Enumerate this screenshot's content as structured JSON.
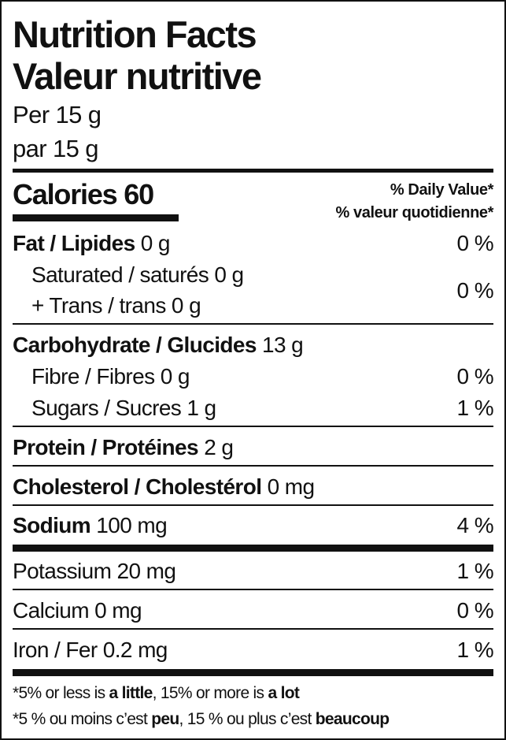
{
  "title_en": "Nutrition Facts",
  "title_fr": "Valeur nutritive",
  "serving_en": "Per 15 g",
  "serving_fr": "par 15 g",
  "calories_label": "Calories",
  "calories_value": "60",
  "dv_en": "% Daily Value*",
  "dv_fr": "% valeur quotidienne*",
  "rows": {
    "fat": {
      "label": "Fat / Lipides",
      "amount": "0 g",
      "dv": "0 %"
    },
    "saturated": {
      "label": "Saturated / saturés 0 g"
    },
    "trans": {
      "label": "+ Trans / trans 0 g",
      "dv": "0 %"
    },
    "carb": {
      "label": "Carbohydrate / Glucides",
      "amount": "13 g"
    },
    "fibre": {
      "label": "Fibre / Fibres 0 g",
      "dv": "0 %"
    },
    "sugars": {
      "label": "Sugars / Sucres 1 g",
      "dv": "1 %"
    },
    "protein": {
      "label": "Protein / Protéines",
      "amount": "2 g"
    },
    "cholesterol": {
      "label": "Cholesterol / Cholestérol",
      "amount": "0 mg"
    },
    "sodium": {
      "label": "Sodium",
      "amount": "100 mg",
      "dv": "4 %"
    },
    "potassium": {
      "label": "Potassium 20 mg",
      "dv": "1 %"
    },
    "calcium": {
      "label": "Calcium 0 mg",
      "dv": "0 %"
    },
    "iron": {
      "label": "Iron / Fer 0.2 mg",
      "dv": "1 %"
    }
  },
  "footnote_en": {
    "a": "*5% or less is ",
    "b": "a little",
    "c": ", 15% or more is ",
    "d": "a lot"
  },
  "footnote_fr": {
    "a": "*5 % ou moins c’est ",
    "b": "peu",
    "c": ", 15 % ou plus c’est ",
    "d": "beaucoup"
  }
}
